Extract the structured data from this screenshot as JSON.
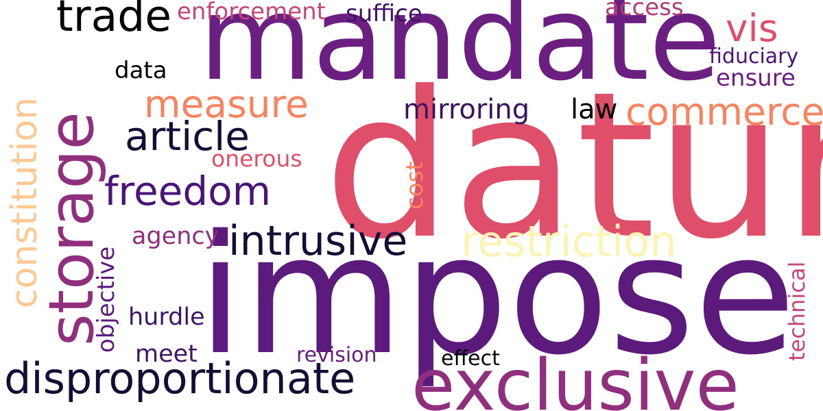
{
  "colors": {
    "background": "#ffffff",
    "magma_dark": "#140e36",
    "magma_purple": "#5c1a7d",
    "magma_violet": "#7a2382",
    "magma_plum": "#8f2f7e",
    "magma_rose": "#b13c79",
    "magma_pink": "#e04f6a",
    "magma_salmon": "#f7845f",
    "magma_peach": "#fdc891",
    "magma_cream": "#fcf4b5"
  },
  "words": [
    {
      "id": "datum",
      "text": "datum",
      "color": "#e04f6a"
    },
    {
      "id": "impose",
      "text": "impose",
      "color": "#5c1a7d"
    },
    {
      "id": "mandate",
      "text": "mandate",
      "color": "#6b1f80"
    },
    {
      "id": "exclusive",
      "text": "exclusive",
      "color": "#8f2f7e"
    },
    {
      "id": "storage",
      "text": "storage",
      "color": "#8f2f7e"
    },
    {
      "id": "disproportionate",
      "text": "disproportionate",
      "color": "#140e36"
    },
    {
      "id": "restriction",
      "text": "restriction",
      "color": "#fcf4b5"
    },
    {
      "id": "intrusive",
      "text": "intrusive",
      "color": "#140e36"
    },
    {
      "id": "constitution",
      "text": "constitution",
      "color": "#fdc891"
    },
    {
      "id": "trade",
      "text": "trade",
      "color": "#000004"
    },
    {
      "id": "freedom",
      "text": "freedom",
      "color": "#4a1478"
    },
    {
      "id": "article",
      "text": "article",
      "color": "#140e36"
    },
    {
      "id": "measure",
      "text": "measure",
      "color": "#f7845f"
    },
    {
      "id": "commerce",
      "text": "commerce",
      "color": "#f7845f"
    },
    {
      "id": "vis",
      "text": "vis",
      "color": "#e04f6a"
    },
    {
      "id": "mirroring",
      "text": "mirroring",
      "color": "#3a1260"
    },
    {
      "id": "law",
      "text": "law",
      "color": "#000004"
    },
    {
      "id": "suffice",
      "text": "suffice",
      "color": "#3e1368"
    },
    {
      "id": "access",
      "text": "access",
      "color": "#b13c79"
    },
    {
      "id": "enforcement",
      "text": "enforcement",
      "color": "#c8457a"
    },
    {
      "id": "fiduciary",
      "text": "fiduciary",
      "color": "#4a1478"
    },
    {
      "id": "ensure",
      "text": "ensure",
      "color": "#6b1f80"
    },
    {
      "id": "data",
      "text": "data",
      "color": "#000004"
    },
    {
      "id": "onerous",
      "text": "onerous",
      "color": "#e04f6a"
    },
    {
      "id": "cost",
      "text": "cost",
      "color": "#f7845f"
    },
    {
      "id": "agency",
      "text": "agency",
      "color": "#8f2f7e"
    },
    {
      "id": "objective",
      "text": "objective",
      "color": "#5c1a7d"
    },
    {
      "id": "hurdle",
      "text": "hurdle",
      "color": "#3e1368"
    },
    {
      "id": "meet",
      "text": "meet",
      "color": "#3e1368"
    },
    {
      "id": "revision",
      "text": "revision",
      "color": "#6b1f80"
    },
    {
      "id": "effect",
      "text": "effect",
      "color": "#000004"
    },
    {
      "id": "technical",
      "text": "technical",
      "color": "#c8457a"
    }
  ]
}
